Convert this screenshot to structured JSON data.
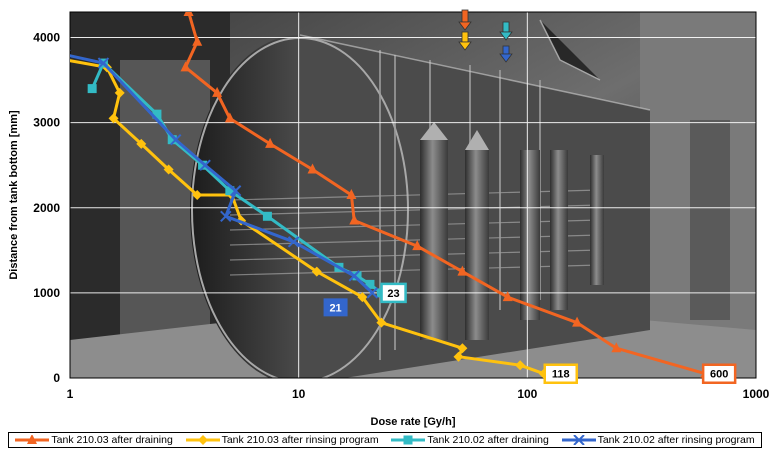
{
  "chart_data": {
    "type": "line",
    "xlabel": "Dose rate [Gy/h]",
    "ylabel": "Distance from tank bottom [mm]",
    "x_scale": "log",
    "xlim": [
      1,
      1000
    ],
    "ylim": [
      0,
      4300
    ],
    "x_ticks": [
      "1",
      "10",
      "100",
      "1000"
    ],
    "y_ticks": [
      "0",
      "1000",
      "2000",
      "3000",
      "4000"
    ],
    "grid": true,
    "legend_position": "bottom",
    "series": [
      {
        "name": "Tank 210.03 after draining",
        "color": "#F26522",
        "marker": "triangle",
        "points": [
          [
            3.3,
            4300
          ],
          [
            3.6,
            3950
          ],
          [
            3.2,
            3650
          ],
          [
            4.4,
            3350
          ],
          [
            5.0,
            3050
          ],
          [
            7.5,
            2750
          ],
          [
            11.5,
            2450
          ],
          [
            17.0,
            2150
          ],
          [
            17.5,
            1850
          ],
          [
            33.0,
            1550
          ],
          [
            52.0,
            1250
          ],
          [
            82.0,
            950
          ],
          [
            165.0,
            650
          ],
          [
            245.0,
            350
          ],
          [
            600.0,
            50
          ]
        ]
      },
      {
        "name": "Tank 210.03 after rinsing program",
        "color": "#FFC20E",
        "marker": "diamond",
        "points": [
          [
            0.9,
            3750
          ],
          [
            1.45,
            3650
          ],
          [
            1.65,
            3350
          ],
          [
            1.55,
            3050
          ],
          [
            2.05,
            2750
          ],
          [
            2.7,
            2450
          ],
          [
            3.6,
            2150
          ],
          [
            5.1,
            2150
          ],
          [
            5.6,
            1850
          ],
          [
            12.0,
            1250
          ],
          [
            19.0,
            950
          ],
          [
            23.0,
            650
          ],
          [
            52.0,
            350
          ],
          [
            50.0,
            250
          ],
          [
            93.0,
            150
          ],
          [
            118.0,
            50
          ]
        ]
      },
      {
        "name": "Tank 210.02 after draining",
        "color": "#33BBC5",
        "marker": "square",
        "points": [
          [
            1.25,
            3400
          ],
          [
            1.4,
            3700
          ],
          [
            2.4,
            3100
          ],
          [
            2.8,
            2800
          ],
          [
            3.8,
            2500
          ],
          [
            5.0,
            2200
          ],
          [
            7.3,
            1900
          ],
          [
            15.0,
            1300
          ],
          [
            18.0,
            1200
          ],
          [
            20.5,
            1100
          ],
          [
            23.0,
            1000
          ]
        ]
      },
      {
        "name": "Tank 210.02 after rinsing program",
        "color": "#3366CC",
        "marker": "x",
        "points": [
          [
            0.95,
            3800
          ],
          [
            1.4,
            3700
          ],
          [
            2.9,
            2800
          ],
          [
            3.9,
            2500
          ],
          [
            5.3,
            2200
          ],
          [
            4.8,
            1900
          ],
          [
            9.5,
            1600
          ],
          [
            17.5,
            1200
          ],
          [
            21.0,
            1000
          ]
        ]
      }
    ],
    "annotations": [
      {
        "label": "600",
        "x": 690,
        "y": 50,
        "box_color": "#F26522",
        "style": "outlined"
      },
      {
        "label": "118",
        "x": 140,
        "y": 50,
        "box_color": "#FFC20E",
        "style": "outlined"
      },
      {
        "label": "23",
        "x": 26,
        "y": 1000,
        "box_color": "#33BBC5",
        "style": "outlined"
      },
      {
        "label": "21",
        "x": 14.5,
        "y": 830,
        "box_color": "#3366CC",
        "style": "filled"
      }
    ]
  }
}
